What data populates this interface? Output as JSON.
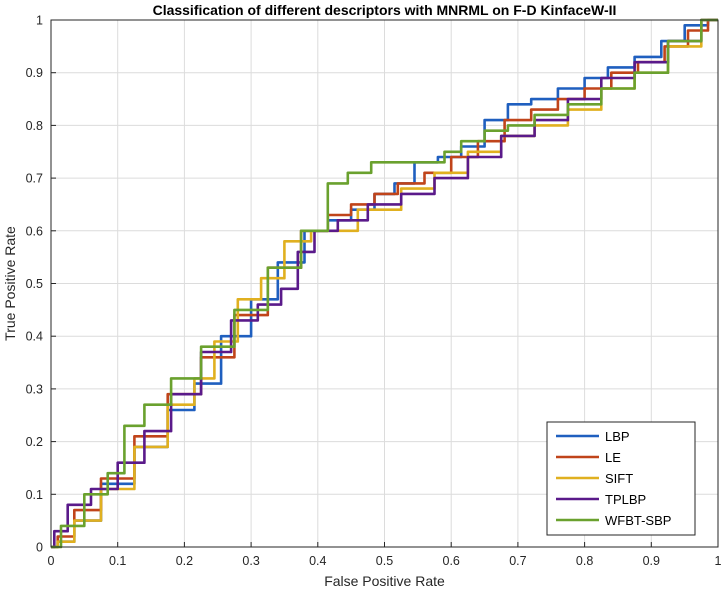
{
  "chart_data": {
    "type": "line",
    "title": "Classification of different descriptors with MNRML on F-D KinfaceW-II",
    "xlabel": "False Positive Rate",
    "ylabel": "True Positive Rate",
    "xlim": [
      0,
      1
    ],
    "ylim": [
      0,
      1
    ],
    "xticks": [
      "0",
      "0.1",
      "0.2",
      "0.3",
      "0.4",
      "0.5",
      "0.6",
      "0.7",
      "0.8",
      "0.9",
      "1"
    ],
    "yticks": [
      "0",
      "0.1",
      "0.2",
      "0.3",
      "0.4",
      "0.5",
      "0.6",
      "0.7",
      "0.8",
      "0.9",
      "1"
    ],
    "grid": true,
    "legend_position": "bottom-right",
    "series": [
      {
        "name": "LBP",
        "color": "#1f5fbf",
        "x": [
          0,
          0.02,
          0.05,
          0.1,
          0.15,
          0.2,
          0.23,
          0.28,
          0.32,
          0.36,
          0.4,
          0.43,
          0.47,
          0.5,
          0.53,
          0.56,
          0.6,
          0.63,
          0.67,
          0.7,
          0.74,
          0.78,
          0.82,
          0.85,
          0.9,
          0.93,
          0.97,
          1
        ],
        "y": [
          0,
          0.01,
          0.05,
          0.12,
          0.19,
          0.26,
          0.31,
          0.4,
          0.47,
          0.54,
          0.6,
          0.62,
          0.64,
          0.67,
          0.69,
          0.73,
          0.74,
          0.76,
          0.81,
          0.84,
          0.85,
          0.87,
          0.89,
          0.91,
          0.93,
          0.96,
          0.99,
          1
        ]
      },
      {
        "name": "LE",
        "color": "#c0441a",
        "x": [
          0,
          0.02,
          0.05,
          0.1,
          0.15,
          0.2,
          0.25,
          0.3,
          0.35,
          0.4,
          0.43,
          0.47,
          0.5,
          0.54,
          0.58,
          0.62,
          0.66,
          0.7,
          0.74,
          0.78,
          0.82,
          0.86,
          0.9,
          0.94,
          0.97,
          1
        ],
        "y": [
          0,
          0.02,
          0.07,
          0.13,
          0.21,
          0.29,
          0.36,
          0.44,
          0.53,
          0.6,
          0.63,
          0.65,
          0.67,
          0.69,
          0.71,
          0.74,
          0.77,
          0.81,
          0.83,
          0.85,
          0.87,
          0.9,
          0.92,
          0.95,
          0.98,
          1
        ]
      },
      {
        "name": "SIFT",
        "color": "#e0b020",
        "x": [
          0,
          0.02,
          0.05,
          0.1,
          0.15,
          0.2,
          0.23,
          0.26,
          0.3,
          0.33,
          0.37,
          0.41,
          0.45,
          0.47,
          0.5,
          0.55,
          0.6,
          0.65,
          0.7,
          0.75,
          0.8,
          0.85,
          0.9,
          0.95,
          1
        ],
        "y": [
          0,
          0.01,
          0.05,
          0.11,
          0.19,
          0.27,
          0.32,
          0.39,
          0.47,
          0.51,
          0.58,
          0.6,
          0.6,
          0.64,
          0.64,
          0.68,
          0.71,
          0.75,
          0.78,
          0.8,
          0.83,
          0.87,
          0.9,
          0.95,
          1
        ]
      },
      {
        "name": "TPLBP",
        "color": "#5a1a8a",
        "x": [
          0,
          0.01,
          0.04,
          0.08,
          0.12,
          0.16,
          0.2,
          0.25,
          0.29,
          0.33,
          0.36,
          0.38,
          0.41,
          0.45,
          0.5,
          0.55,
          0.6,
          0.65,
          0.7,
          0.75,
          0.8,
          0.85,
          0.9,
          0.95,
          1
        ],
        "y": [
          0,
          0.03,
          0.08,
          0.11,
          0.16,
          0.22,
          0.29,
          0.37,
          0.43,
          0.46,
          0.49,
          0.56,
          0.6,
          0.62,
          0.65,
          0.67,
          0.7,
          0.74,
          0.78,
          0.81,
          0.85,
          0.89,
          0.92,
          0.96,
          1
        ]
      },
      {
        "name": "WFBT-SBP",
        "color": "#6aa12e",
        "x": [
          0,
          0.03,
          0.07,
          0.1,
          0.12,
          0.16,
          0.2,
          0.25,
          0.3,
          0.35,
          0.4,
          0.43,
          0.46,
          0.5,
          0.55,
          0.58,
          0.6,
          0.63,
          0.67,
          0.7,
          0.75,
          0.8,
          0.85,
          0.9,
          0.95,
          1
        ],
        "y": [
          0,
          0.04,
          0.1,
          0.14,
          0.23,
          0.27,
          0.32,
          0.38,
          0.45,
          0.53,
          0.6,
          0.69,
          0.71,
          0.73,
          0.73,
          0.73,
          0.75,
          0.77,
          0.79,
          0.8,
          0.82,
          0.84,
          0.87,
          0.9,
          0.96,
          1
        ]
      }
    ]
  }
}
